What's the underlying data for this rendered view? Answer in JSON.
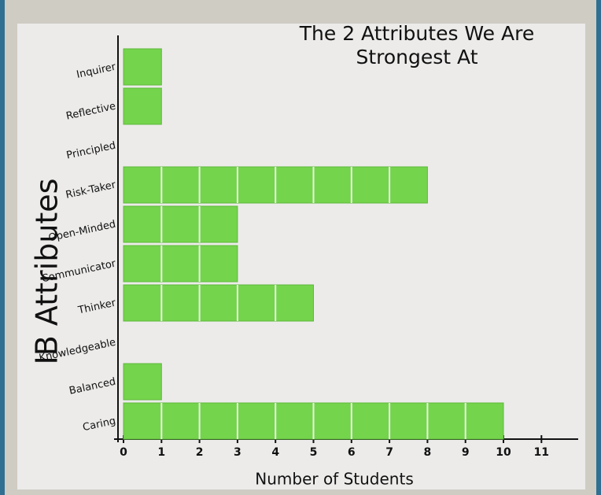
{
  "chart_data": {
    "type": "barh",
    "title": "The 2 Attributes We Are Strongest At",
    "xlabel": "Number of Students",
    "ylabel": "IB Attributes",
    "categories": [
      "Inquirer",
      "Reflective",
      "Principled",
      "Risk-Taker",
      "Open-Minded",
      "Communicator",
      "Thinker",
      "Knowledgeable",
      "Balanced",
      "Caring"
    ],
    "values": [
      1,
      1,
      0,
      8,
      3,
      3,
      5,
      0,
      1,
      10
    ],
    "color": "#74d44c",
    "xlim": [
      0,
      12
    ],
    "xticks": [
      0,
      1,
      2,
      3,
      4,
      5,
      6,
      7,
      8,
      9,
      10,
      11
    ]
  }
}
